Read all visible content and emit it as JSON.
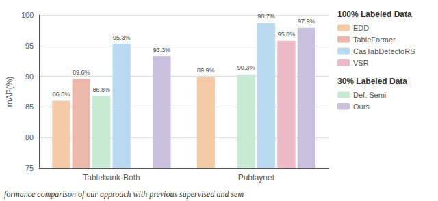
{
  "chart_data": {
    "type": "bar",
    "categories": [
      "Tablebank-Both",
      "Publaynet"
    ],
    "series": [
      {
        "name": "EDD",
        "color": "#F5CBA7",
        "values": [
          86.0,
          89.9
        ],
        "value_labels": [
          "86.0%",
          "89.9%"
        ]
      },
      {
        "name": "TableFormer",
        "color": "#EDB8AC",
        "values": [
          89.6,
          null
        ],
        "value_labels": [
          "89.6%",
          null
        ]
      },
      {
        "name": "Def. Semi",
        "color": "#C8EAD3",
        "values": [
          86.8,
          90.3
        ],
        "value_labels": [
          "86.8%",
          "90.3%"
        ]
      },
      {
        "name": "CasTabDetectoRS",
        "color": "#B8D9F0",
        "values": [
          95.3,
          98.7
        ],
        "value_labels": [
          "95.3%",
          "98.7%"
        ]
      },
      {
        "name": "VSR",
        "color": "#EDB8C8",
        "values": [
          null,
          95.8
        ],
        "value_labels": [
          null,
          "95.8%"
        ]
      },
      {
        "name": "Ours",
        "color": "#C8C0DC",
        "values": [
          93.3,
          97.9
        ],
        "value_labels": [
          "93.3%",
          "97.9%"
        ]
      }
    ],
    "ylabel": "mAP(%)",
    "ylim": [
      75,
      100
    ],
    "yticks": [
      75,
      80,
      85,
      90,
      95,
      100
    ],
    "grid": true,
    "data_labels": true,
    "legend": "right",
    "legend_sections": [
      {
        "title": "100% Labeled Data",
        "series": [
          "EDD",
          "TableFormer",
          "CasTabDetectoRS",
          "VSR"
        ]
      },
      {
        "title": "30% Labeled Data",
        "series": [
          "Def. Semi",
          "Ours"
        ]
      }
    ],
    "caption": "formance comparison of our approach with previous supervised and sem"
  }
}
